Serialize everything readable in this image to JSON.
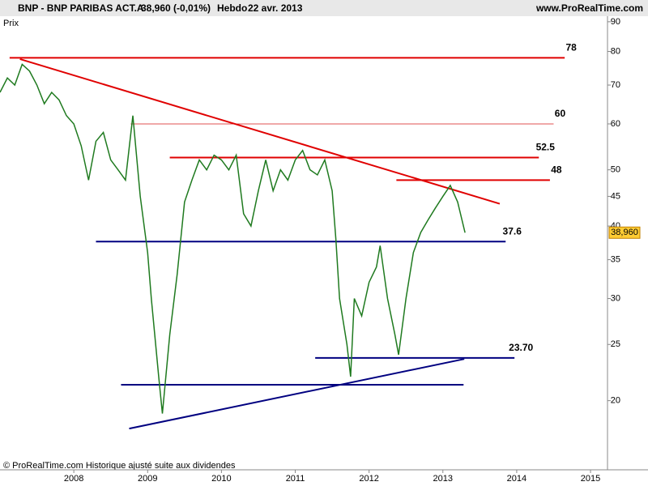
{
  "header": {
    "symbol": "BNP - BNP PARIBAS ACT.A",
    "quote": "38,960 (-0,01%)",
    "period": "Hebdo",
    "date": "22 avr. 2013",
    "site": "www.ProRealTime.com"
  },
  "chart_data": {
    "type": "line",
    "y_label": "Prix",
    "footer": "© ProRealTime.com Historique ajusté suite aux dividendes",
    "x": [
      2007.0,
      2007.1,
      2007.2,
      2007.3,
      2007.4,
      2007.5,
      2007.6,
      2007.7,
      2007.8,
      2007.9,
      2008.0,
      2008.1,
      2008.2,
      2008.3,
      2008.4,
      2008.5,
      2008.6,
      2008.7,
      2008.8,
      2008.9,
      2009.0,
      2009.05,
      2009.15,
      2009.2,
      2009.3,
      2009.4,
      2009.5,
      2009.6,
      2009.7,
      2009.8,
      2009.9,
      2010.0,
      2010.1,
      2010.2,
      2010.3,
      2010.4,
      2010.5,
      2010.6,
      2010.7,
      2010.8,
      2010.9,
      2011.0,
      2011.1,
      2011.2,
      2011.3,
      2011.4,
      2011.5,
      2011.55,
      2011.6,
      2011.7,
      2011.75,
      2011.8,
      2011.9,
      2012.0,
      2012.1,
      2012.15,
      2012.25,
      2012.35,
      2012.4,
      2012.5,
      2012.6,
      2012.7,
      2012.8,
      2012.9,
      2013.0,
      2013.1,
      2013.2,
      2013.3
    ],
    "series": [
      {
        "color": "#1f7a1f",
        "values": [
          68,
          72,
          70,
          76,
          74,
          70,
          65,
          68,
          66,
          62,
          60,
          55,
          48,
          56,
          58,
          52,
          50,
          48,
          62,
          45,
          36,
          30,
          22,
          19,
          26,
          33,
          44,
          48,
          52,
          50,
          53,
          52,
          50,
          53,
          42,
          40,
          46,
          52,
          46,
          50,
          48,
          52,
          54,
          50,
          49,
          52,
          46,
          38,
          30,
          25,
          22,
          30,
          28,
          32,
          34,
          37,
          30,
          26,
          24,
          30,
          36,
          39,
          41,
          43,
          45,
          47,
          44,
          38.96
        ]
      }
    ],
    "xlim": [
      2007.0,
      2015.23
    ],
    "xticks": [
      2008,
      2009,
      2010,
      2011,
      2012,
      2013,
      2014,
      2015
    ],
    "ylim": [
      15.2,
      92.6
    ],
    "yticks": [
      20,
      25,
      30,
      35,
      40,
      45,
      50,
      60,
      70,
      80,
      90
    ],
    "log_y": true,
    "last": {
      "value": 38.96,
      "label": "38,960"
    },
    "levels": [
      {
        "value": 78,
        "x": [
          2007.13,
          2014.65
        ],
        "color": "#e00000",
        "width": 2
      },
      {
        "value": 60,
        "x": [
          2008.77,
          2014.5
        ],
        "color": "#e05050",
        "width": 1
      },
      {
        "value": 52.5,
        "x": [
          2009.3,
          2014.3
        ],
        "color": "#e00000",
        "width": 2
      },
      {
        "value": 48,
        "x": [
          2012.37,
          2014.45
        ],
        "color": "#e00000",
        "width": 2
      },
      {
        "value": 37.6,
        "x": [
          2008.3,
          2013.85
        ],
        "color": "#000080",
        "width": 2
      },
      {
        "value": 23.7,
        "label": "23.70",
        "x": [
          2011.27,
          2013.97
        ],
        "color": "#000080",
        "width": 2
      },
      {
        "value": 21.3,
        "x": [
          2008.64,
          2013.28
        ],
        "color": "#000080",
        "width": 2
      }
    ],
    "trendlines": [
      {
        "x": [
          2007.27,
          2013.77
        ],
        "y": [
          77.6,
          43.7
        ],
        "color": "#e00000"
      },
      {
        "x": [
          2008.75,
          2013.29
        ],
        "y": [
          17.9,
          23.6
        ],
        "color": "#000080"
      }
    ]
  }
}
